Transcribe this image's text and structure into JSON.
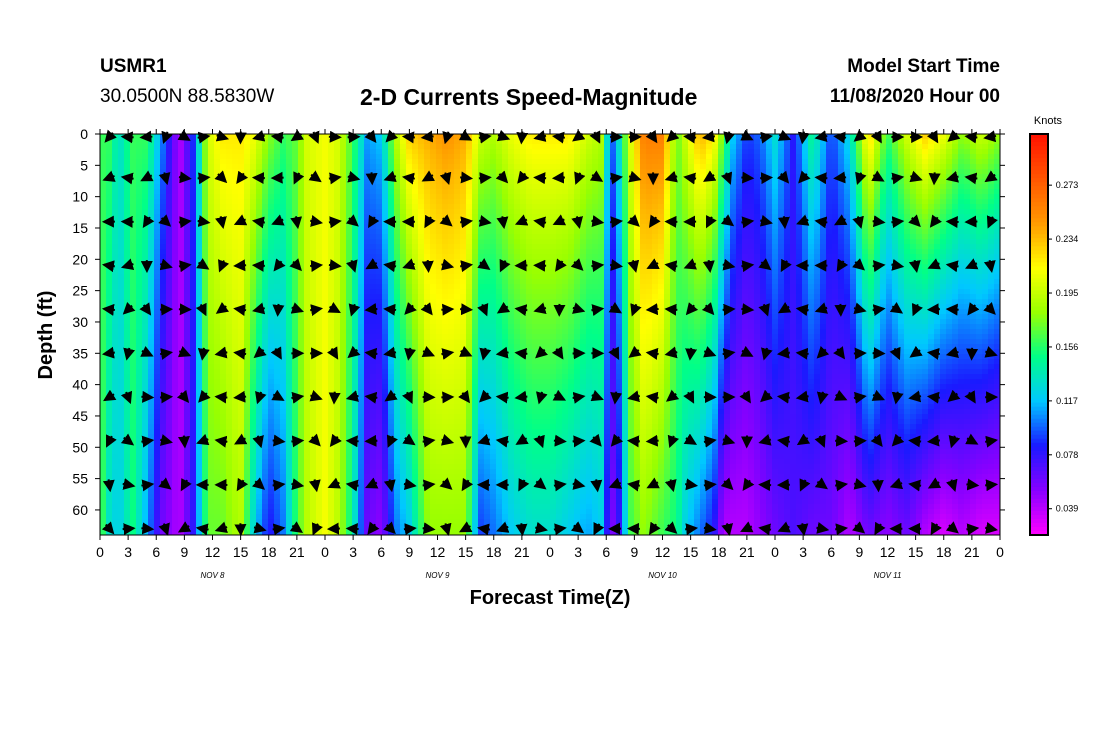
{
  "header": {
    "station_id": "USMR1",
    "coordinates": "30.0500N 88.5830W",
    "title": "2-D Currents Speed-Magnitude",
    "start_label": "Model Start Time",
    "start_value": "11/08/2020 Hour 00"
  },
  "chart_data": {
    "type": "heatmap",
    "title": "2-D Currents Speed-Magnitude",
    "xlabel": "Forecast Time(Z)",
    "ylabel": "Depth (ft)",
    "x_ticks": [
      "0",
      "3",
      "6",
      "9",
      "12",
      "15",
      "18",
      "21",
      "0",
      "3",
      "6",
      "9",
      "12",
      "15",
      "18",
      "21",
      "0",
      "3",
      "6",
      "9",
      "12",
      "15",
      "18",
      "21",
      "0",
      "3",
      "6",
      "9",
      "12",
      "15",
      "18",
      "21",
      "0"
    ],
    "x_range_hours": [
      0,
      96
    ],
    "day_labels": [
      {
        "label": "NOV  8",
        "hour": 12
      },
      {
        "label": "NOV  9",
        "hour": 36
      },
      {
        "label": "NOV 10",
        "hour": 60
      },
      {
        "label": "NOV 11",
        "hour": 84
      }
    ],
    "y_ticks": [
      "0",
      "5",
      "10",
      "15",
      "20",
      "25",
      "30",
      "35",
      "40",
      "45",
      "50",
      "55",
      "60"
    ],
    "y_range_ft": [
      0,
      64
    ],
    "colorbar": {
      "title": "Knots",
      "labels": [
        "0.273",
        "0.234",
        "0.195",
        "0.156",
        "0.117",
        "0.078",
        "0.039"
      ],
      "range": [
        0.02,
        0.31
      ],
      "colors": [
        "#ff00ff",
        "#8800ff",
        "#1a1aff",
        "#00c8ff",
        "#00ff88",
        "#99ff00",
        "#ffff00",
        "#ff9900",
        "#ff5500",
        "#ff1100"
      ]
    },
    "speed_profile": [
      {
        "t": 0,
        "s": 0.16,
        "b": 0.17
      },
      {
        "t": 1,
        "s": 0.16,
        "b": 0.13
      },
      {
        "t": 2,
        "s": 0.13,
        "b": 0.12
      },
      {
        "t": 3.5,
        "s": 0.16,
        "b": 0.15
      },
      {
        "t": 5,
        "s": 0.16,
        "b": 0.11
      },
      {
        "t": 6.5,
        "s": 0.11,
        "b": 0.06
      },
      {
        "t": 8.5,
        "s": 0.04,
        "b": 0.04
      },
      {
        "t": 10,
        "s": 0.09,
        "b": 0.08
      },
      {
        "t": 11.5,
        "s": 0.2,
        "b": 0.17
      },
      {
        "t": 13,
        "s": 0.22,
        "b": 0.17
      },
      {
        "t": 15,
        "s": 0.22,
        "b": 0.19
      },
      {
        "t": 16.5,
        "s": 0.21,
        "b": 0.12
      },
      {
        "t": 18,
        "s": 0.18,
        "b": 0.08
      },
      {
        "t": 19.5,
        "s": 0.16,
        "b": 0.1
      },
      {
        "t": 21,
        "s": 0.17,
        "b": 0.16
      },
      {
        "t": 22,
        "s": 0.2,
        "b": 0.19
      },
      {
        "t": 24,
        "s": 0.21,
        "b": 0.21
      },
      {
        "t": 25.5,
        "s": 0.2,
        "b": 0.19
      },
      {
        "t": 27,
        "s": 0.16,
        "b": 0.14
      },
      {
        "t": 28.5,
        "s": 0.11,
        "b": 0.06
      },
      {
        "t": 30,
        "s": 0.12,
        "b": 0.05
      },
      {
        "t": 31.5,
        "s": 0.19,
        "b": 0.1
      },
      {
        "t": 33,
        "s": 0.23,
        "b": 0.12
      },
      {
        "t": 35,
        "s": 0.24,
        "b": 0.18
      },
      {
        "t": 37,
        "s": 0.25,
        "b": 0.18
      },
      {
        "t": 39,
        "s": 0.24,
        "b": 0.18
      },
      {
        "t": 40.5,
        "s": 0.2,
        "b": 0.09
      },
      {
        "t": 42,
        "s": 0.19,
        "b": 0.1
      },
      {
        "t": 44,
        "s": 0.21,
        "b": 0.12
      },
      {
        "t": 46,
        "s": 0.22,
        "b": 0.13
      },
      {
        "t": 48,
        "s": 0.22,
        "b": 0.13
      },
      {
        "t": 50,
        "s": 0.22,
        "b": 0.12
      },
      {
        "t": 52,
        "s": 0.2,
        "b": 0.11
      },
      {
        "t": 53.5,
        "s": 0.19,
        "b": 0.12
      },
      {
        "t": 54.5,
        "s": 0.09,
        "b": 0.05
      },
      {
        "t": 55.5,
        "s": 0.14,
        "b": 0.08
      },
      {
        "t": 56.5,
        "s": 0.2,
        "b": 0.16
      },
      {
        "t": 58,
        "s": 0.26,
        "b": 0.18
      },
      {
        "t": 60,
        "s": 0.26,
        "b": 0.16
      },
      {
        "t": 61.5,
        "s": 0.17,
        "b": 0.15
      },
      {
        "t": 62.5,
        "s": 0.2,
        "b": 0.12
      },
      {
        "t": 64,
        "s": 0.24,
        "b": 0.1
      },
      {
        "t": 65.5,
        "s": 0.22,
        "b": 0.08
      },
      {
        "t": 66.5,
        "s": 0.17,
        "b": 0.04
      },
      {
        "t": 67.5,
        "s": 0.12,
        "b": 0.04
      },
      {
        "t": 69,
        "s": 0.09,
        "b": 0.04
      },
      {
        "t": 70.5,
        "s": 0.1,
        "b": 0.05
      },
      {
        "t": 72,
        "s": 0.13,
        "b": 0.06
      },
      {
        "t": 74,
        "s": 0.08,
        "b": 0.07
      },
      {
        "t": 76,
        "s": 0.15,
        "b": 0.06
      },
      {
        "t": 78,
        "s": 0.09,
        "b": 0.06
      },
      {
        "t": 80,
        "s": 0.13,
        "b": 0.04
      },
      {
        "t": 82,
        "s": 0.23,
        "b": 0.06
      },
      {
        "t": 84,
        "s": 0.16,
        "b": 0.05
      },
      {
        "t": 86,
        "s": 0.2,
        "b": 0.06
      },
      {
        "t": 88,
        "s": 0.23,
        "b": 0.04
      },
      {
        "t": 90,
        "s": 0.21,
        "b": 0.03
      },
      {
        "t": 92,
        "s": 0.18,
        "b": 0.04
      },
      {
        "t": 94,
        "s": 0.2,
        "b": 0.03
      },
      {
        "t": 96,
        "s": 0.18,
        "b": 0.03
      }
    ],
    "vector_columns_hours": [
      1,
      3,
      5,
      7,
      9,
      11,
      13,
      15,
      17,
      19,
      21,
      23,
      25,
      27,
      29,
      31,
      33,
      35,
      37,
      39,
      41,
      43,
      45,
      47,
      49,
      51,
      53,
      55,
      57,
      59,
      61,
      63,
      65,
      67,
      69,
      71,
      73,
      75,
      77,
      79,
      81,
      83,
      85,
      87,
      89,
      91,
      93,
      95
    ],
    "vector_depths_ft": [
      0,
      7,
      14,
      21,
      28,
      35,
      42,
      49,
      56,
      63
    ]
  }
}
